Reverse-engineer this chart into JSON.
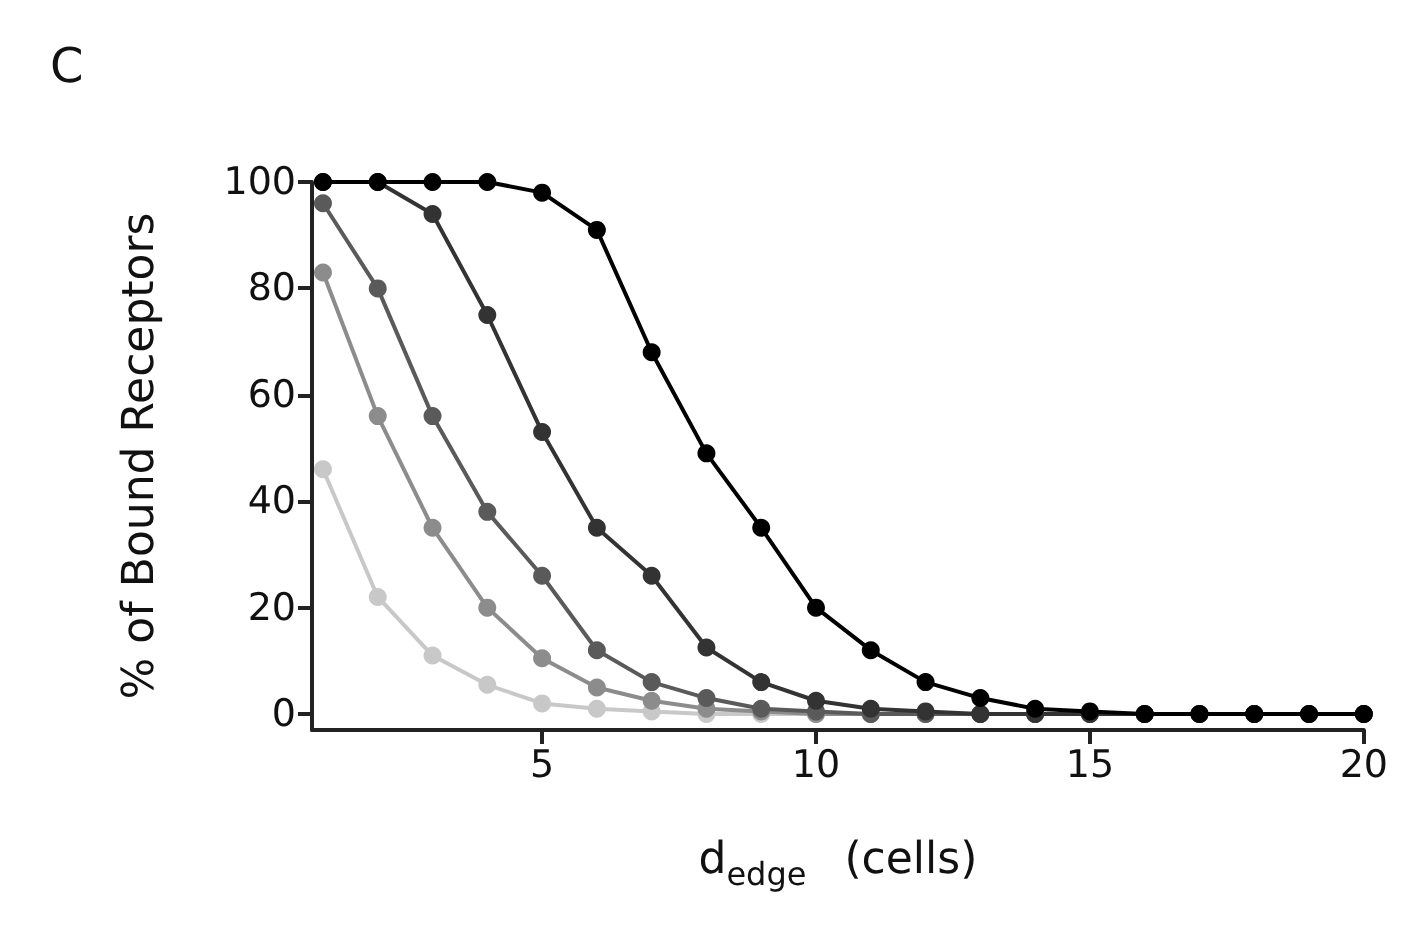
{
  "chart_data": {
    "type": "line",
    "title": "C",
    "xlabel": "d$_{edge}$ (cells)",
    "ylabel": "% of Bound Receptors",
    "x": [
      1,
      2,
      3,
      4,
      5,
      6,
      7,
      8,
      9,
      10,
      11,
      12,
      13,
      14,
      15,
      16,
      17,
      18,
      19,
      20
    ],
    "series": [
      {
        "color": "#000000",
        "values": [
          100,
          100,
          100,
          100,
          98,
          91,
          68,
          49,
          35,
          20,
          12,
          6,
          3,
          1,
          0.5,
          0,
          0,
          0,
          0,
          0
        ]
      },
      {
        "color": "#333333",
        "values": [
          100,
          100,
          94,
          75,
          53,
          35,
          26,
          12.5,
          6,
          2.5,
          1,
          0.5,
          0,
          0,
          0,
          0,
          0,
          0,
          0,
          0
        ]
      },
      {
        "color": "#5a5a5a",
        "values": [
          96,
          80,
          56,
          38,
          26,
          12,
          6,
          3,
          1,
          0.5,
          0,
          0,
          0,
          0,
          0,
          0,
          0,
          0,
          0,
          0
        ]
      },
      {
        "color": "#8c8c8c",
        "values": [
          83,
          56,
          35,
          20,
          10.5,
          5,
          2.5,
          1,
          0.5,
          0,
          0,
          0,
          0,
          0,
          0,
          0,
          0,
          0,
          0,
          0
        ]
      },
      {
        "color": "#c8c8c8",
        "values": [
          46,
          22,
          11,
          5.5,
          2,
          1,
          0.5,
          0,
          0,
          0,
          0,
          0,
          0,
          0,
          0,
          0,
          0,
          0,
          0,
          0
        ]
      }
    ],
    "xlim": [
      0.8,
      20
    ],
    "xticks": [
      5,
      10,
      15,
      20
    ],
    "ylim": [
      -3,
      100
    ],
    "yticks": [
      0,
      20,
      40,
      60,
      80,
      100
    ],
    "grid": false,
    "marker": "circle",
    "line_style": "solid"
  }
}
